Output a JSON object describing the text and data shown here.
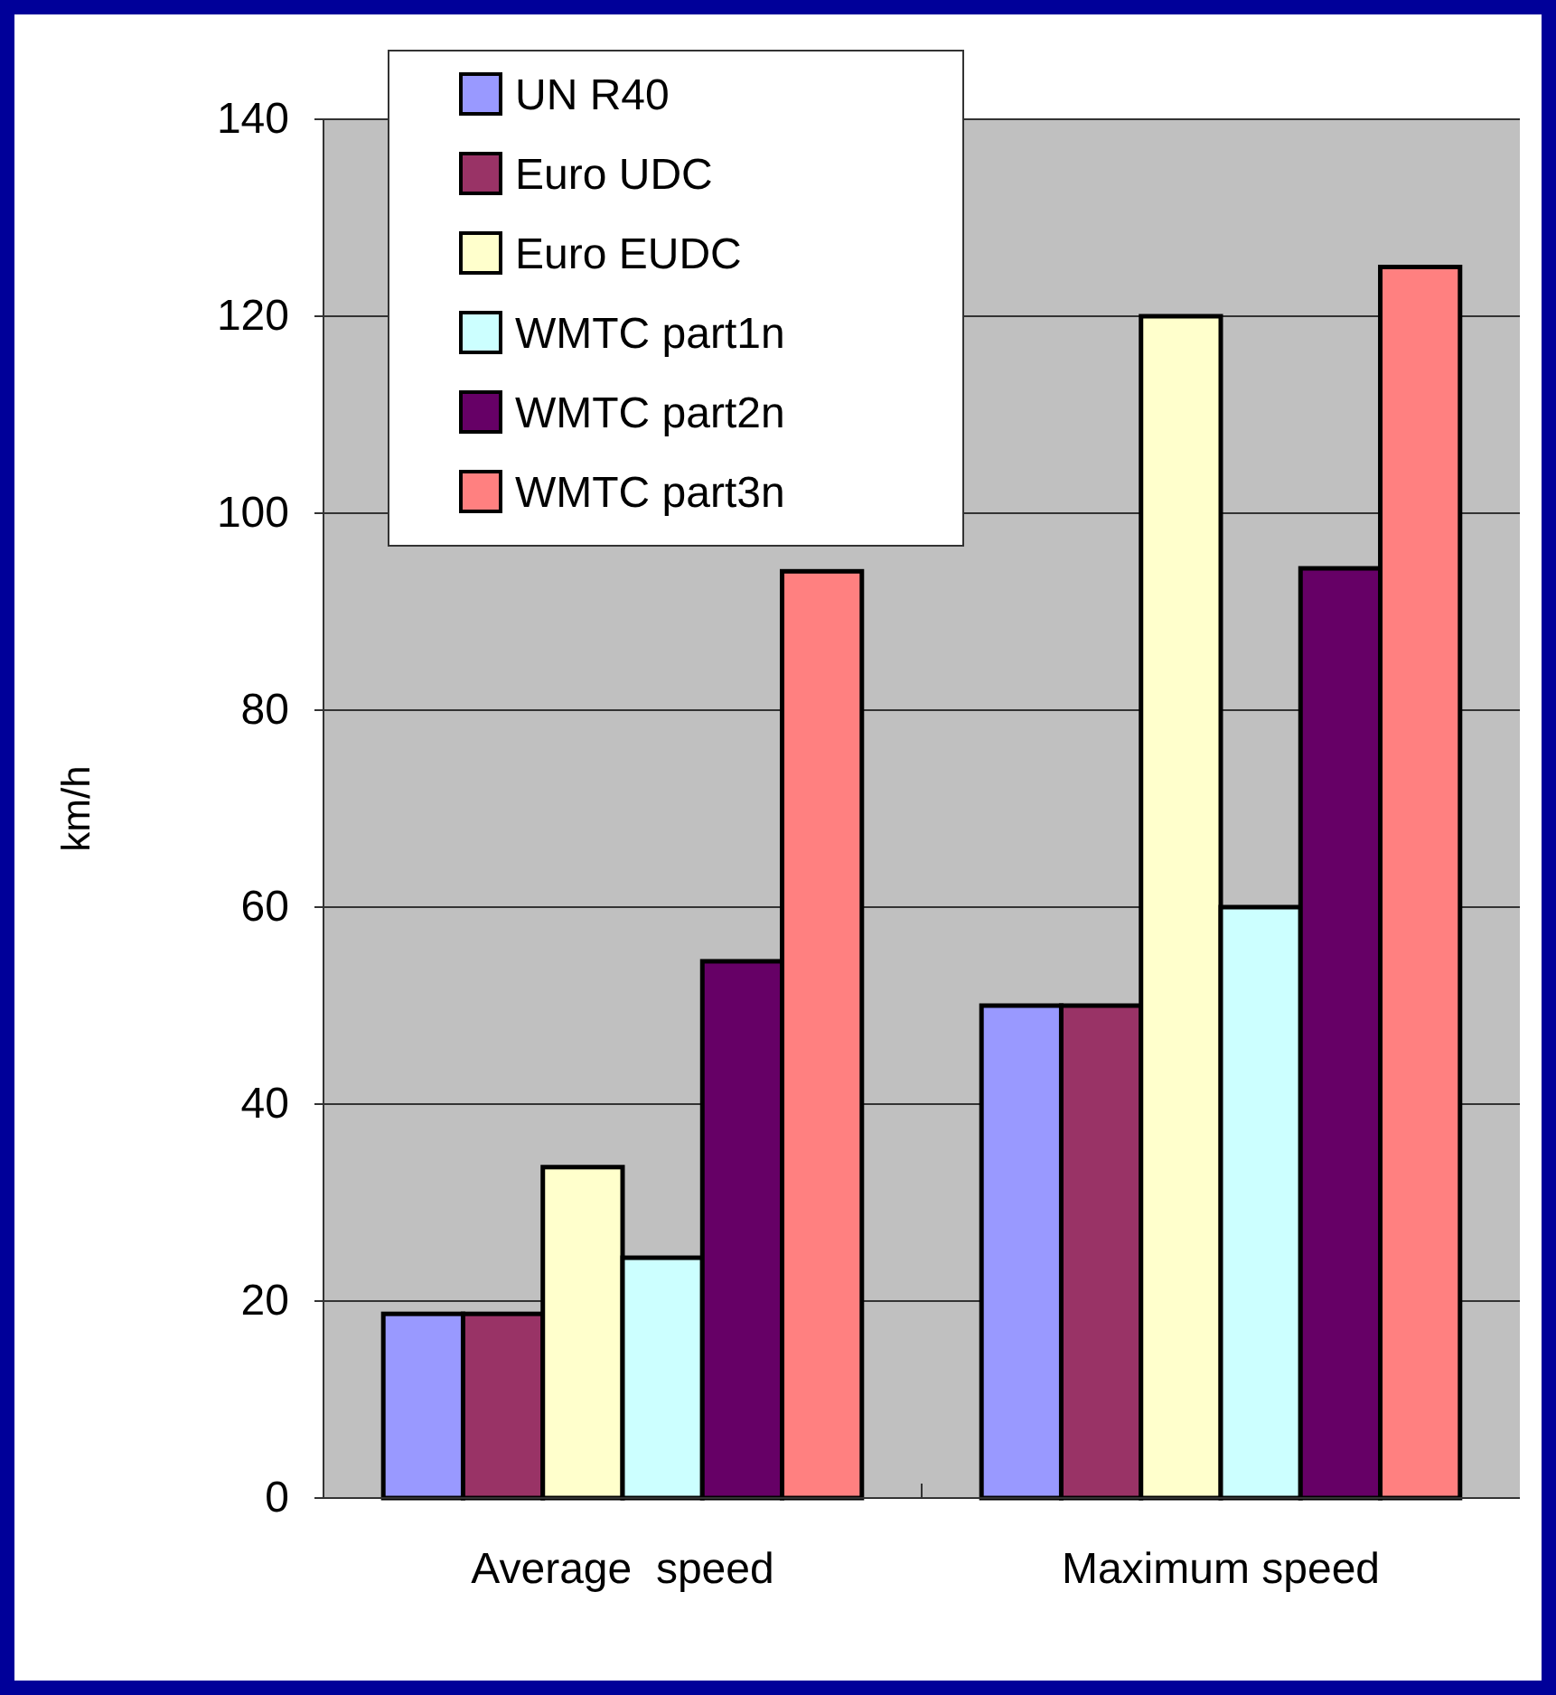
{
  "chart_data": {
    "type": "bar",
    "ylabel": "km/h",
    "categories": [
      "Average  speed",
      "Maximum speed"
    ],
    "series": [
      {
        "name": "UN R40",
        "color": "#9999ff",
        "values": [
          18.7,
          50
        ]
      },
      {
        "name": "Euro UDC",
        "color": "#993366",
        "values": [
          18.7,
          50
        ]
      },
      {
        "name": "Euro EUDC",
        "color": "#ffffcc",
        "values": [
          33.6,
          120
        ]
      },
      {
        "name": "WMTC part1n",
        "color": "#ccffff",
        "values": [
          24.4,
          60
        ]
      },
      {
        "name": "WMTC part2n",
        "color": "#660066",
        "values": [
          54.5,
          94.4
        ]
      },
      {
        "name": "WMTC part3n",
        "color": "#ff8080",
        "values": [
          94.1,
          125
        ]
      }
    ],
    "ylim": [
      0,
      140
    ],
    "yticks": [
      0,
      20,
      40,
      60,
      80,
      100,
      120,
      140
    ],
    "grid": "y",
    "legend": "top left"
  }
}
